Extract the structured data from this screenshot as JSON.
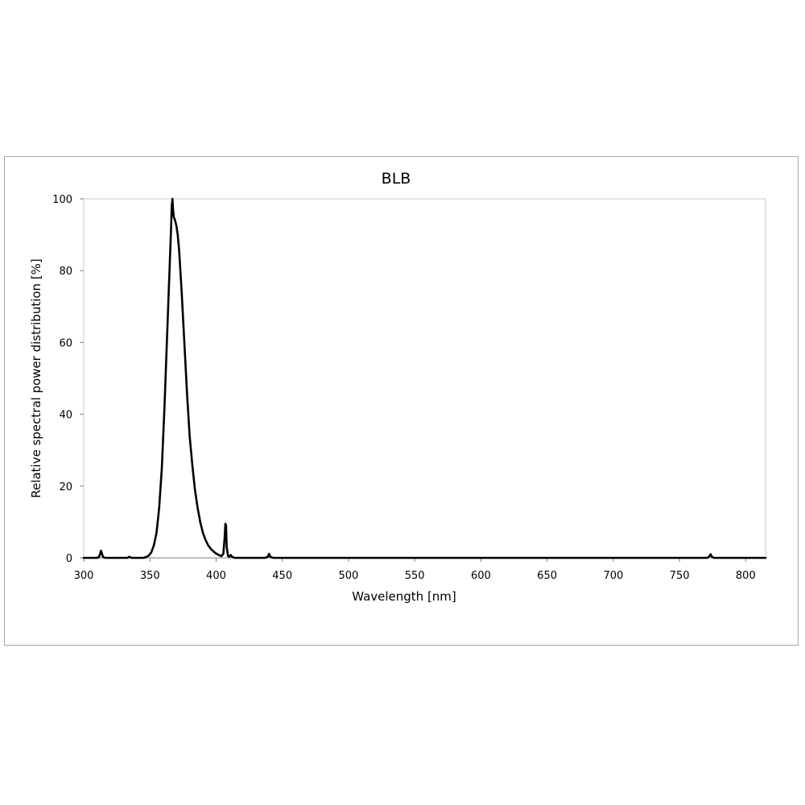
{
  "chart_data": {
    "type": "line",
    "title": "BLB",
    "xlabel": "Wavelength [nm]",
    "ylabel": "Relative spectral power distribution [%]",
    "xlim": [
      300,
      815
    ],
    "ylim": [
      0,
      100
    ],
    "x_ticks": [
      300,
      350,
      400,
      450,
      500,
      550,
      600,
      650,
      700,
      750,
      800
    ],
    "y_ticks": [
      0,
      20,
      40,
      60,
      80,
      100
    ],
    "grid": false,
    "legend": "none",
    "colors": {
      "line": "#000000",
      "frame": "#a6a6a6",
      "plot_border": "#c8c8c8",
      "axis": "#7f7f7f"
    },
    "series": [
      {
        "points": [
          [
            300,
            0
          ],
          [
            310,
            0
          ],
          [
            311.5,
            0.2
          ],
          [
            312.5,
            1.2
          ],
          [
            313,
            2.0
          ],
          [
            313.5,
            1.5
          ],
          [
            314.5,
            0.3
          ],
          [
            316,
            0
          ],
          [
            333,
            0
          ],
          [
            334.5,
            0.3
          ],
          [
            336,
            0
          ],
          [
            345,
            0
          ],
          [
            347,
            0.2
          ],
          [
            349,
            0.6
          ],
          [
            351,
            1.5
          ],
          [
            353,
            3.5
          ],
          [
            355,
            7
          ],
          [
            357,
            14
          ],
          [
            359,
            25
          ],
          [
            361,
            42
          ],
          [
            363,
            62
          ],
          [
            365,
            82
          ],
          [
            366,
            92
          ],
          [
            366.5,
            98
          ],
          [
            367,
            100
          ],
          [
            367.5,
            97
          ],
          [
            368,
            95
          ],
          [
            369,
            94
          ],
          [
            370,
            92.5
          ],
          [
            371,
            90
          ],
          [
            372,
            86
          ],
          [
            373,
            80
          ],
          [
            374,
            74
          ],
          [
            375,
            67
          ],
          [
            376,
            60
          ],
          [
            377,
            53
          ],
          [
            378,
            46
          ],
          [
            379,
            40
          ],
          [
            380,
            34
          ],
          [
            382,
            26
          ],
          [
            384,
            19
          ],
          [
            386,
            14
          ],
          [
            388,
            10
          ],
          [
            390,
            7
          ],
          [
            392,
            5
          ],
          [
            394,
            3.5
          ],
          [
            396,
            2.5
          ],
          [
            398,
            1.8
          ],
          [
            400,
            1.2
          ],
          [
            402,
            0.8
          ],
          [
            404,
            0.5
          ],
          [
            405.5,
            1.2
          ],
          [
            406.5,
            6
          ],
          [
            407,
            9.5
          ],
          [
            407.5,
            9.0
          ],
          [
            408,
            3
          ],
          [
            409,
            0.5
          ],
          [
            410,
            0.3
          ],
          [
            411,
            0.8
          ],
          [
            412,
            0.3
          ],
          [
            414,
            0
          ],
          [
            437,
            0
          ],
          [
            439,
            0.3
          ],
          [
            440,
            1.1
          ],
          [
            441,
            0.3
          ],
          [
            443,
            0
          ],
          [
            771,
            0
          ],
          [
            772.5,
            0.4
          ],
          [
            773.5,
            1.0
          ],
          [
            774.5,
            0.3
          ],
          [
            776,
            0
          ],
          [
            815,
            0
          ]
        ]
      }
    ]
  }
}
